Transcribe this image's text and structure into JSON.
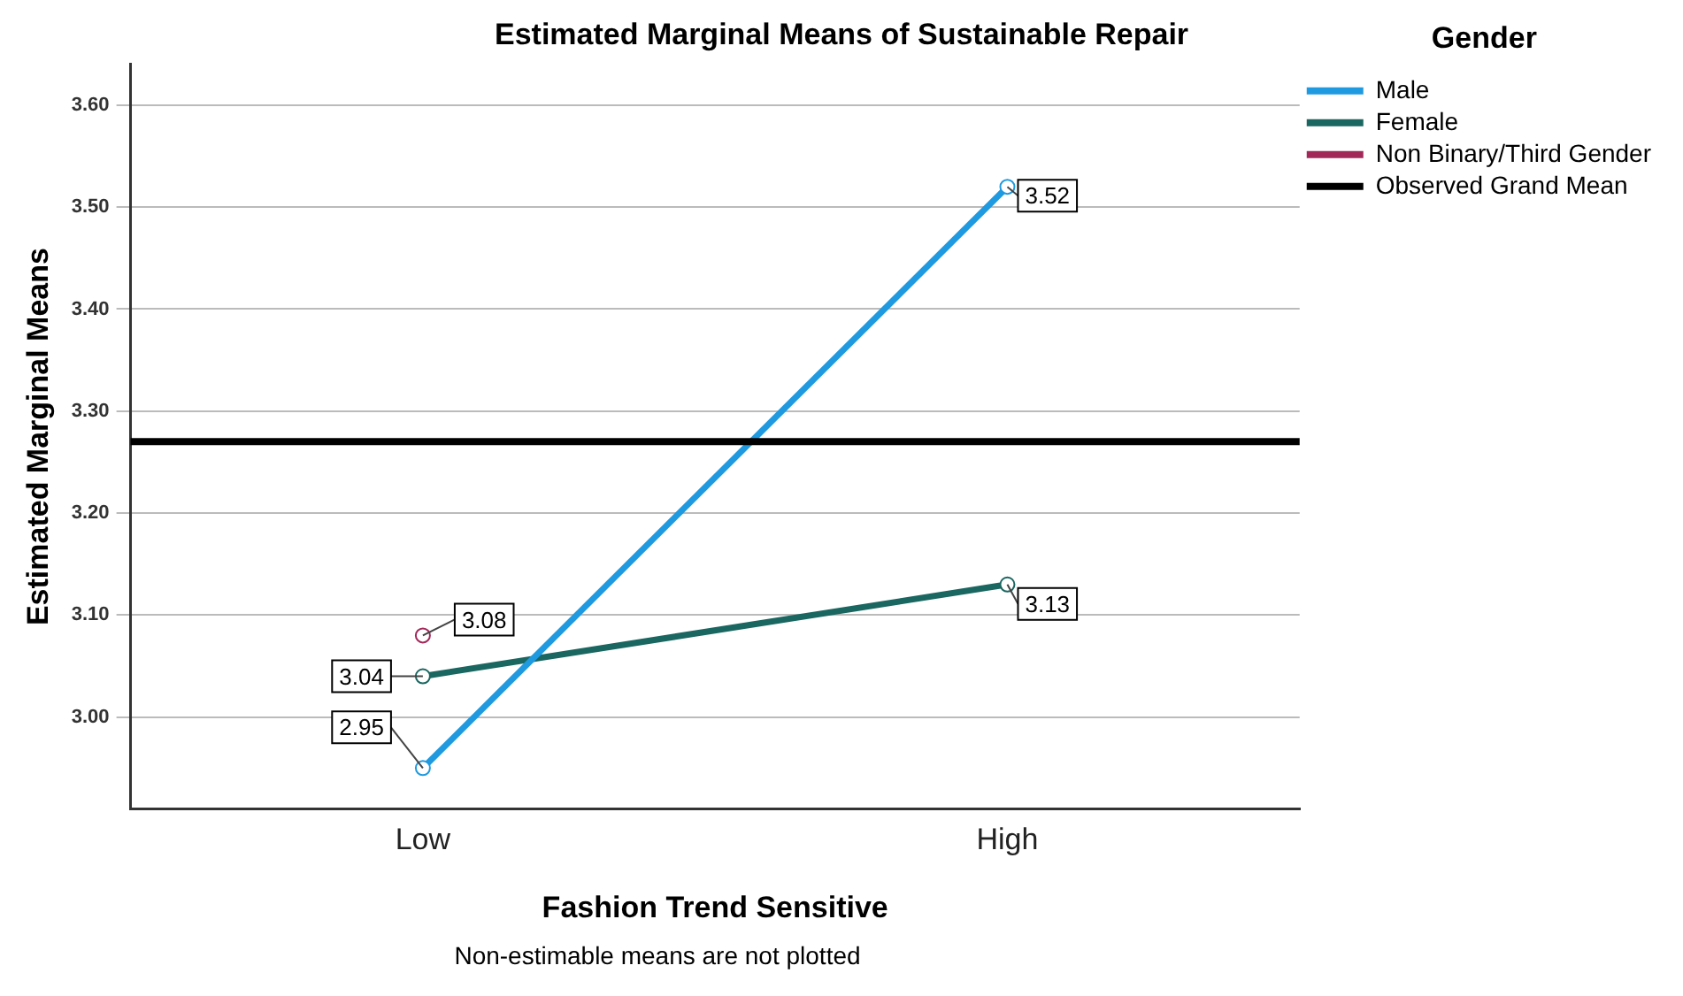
{
  "chart_data": {
    "type": "line",
    "title": "Estimated Marginal Means of Sustainable Repair",
    "xlabel": "Fashion Trend Sensitive",
    "ylabel": "Estimated Marginal Means",
    "legend_title": "Gender",
    "categories": [
      "Low",
      "High"
    ],
    "series": [
      {
        "name": "Male",
        "color": "#1f9ae0",
        "values": [
          2.95,
          3.52
        ]
      },
      {
        "name": "Female",
        "color": "#1a6660",
        "values": [
          3.04,
          3.13
        ]
      },
      {
        "name": "Non Binary/Third Gender",
        "color": "#a3285a",
        "values": [
          3.08,
          null
        ]
      }
    ],
    "ylim": [
      2.91,
      3.64
    ],
    "yticks": [
      {
        "value": 3.0,
        "label": "3.00"
      },
      {
        "value": 3.1,
        "label": "3.10"
      },
      {
        "value": 3.2,
        "label": "3.20"
      },
      {
        "value": 3.3,
        "label": "3.30"
      },
      {
        "value": 3.4,
        "label": "3.40"
      },
      {
        "value": 3.5,
        "label": "3.50"
      },
      {
        "value": 3.6,
        "label": "3.60"
      }
    ],
    "ref_lines": [
      {
        "axis": "y",
        "value": 3.27,
        "label": "Observed Grand Mean",
        "color": "#000000"
      }
    ],
    "grid": "y",
    "legend": "top right",
    "marker": "circle",
    "line_style": "solid",
    "data_labels": true,
    "annotations": [
      "Non-estimable means are not plotted"
    ]
  }
}
